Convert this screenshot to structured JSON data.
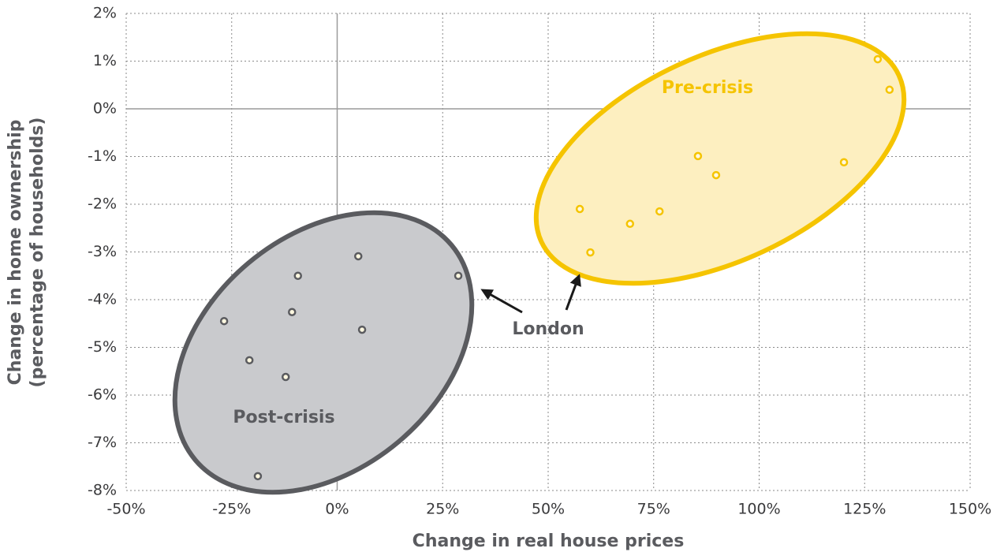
{
  "chart_data": {
    "type": "scatter",
    "xlabel": "Change in real house prices",
    "ylabel": [
      "Change in home ownership",
      "(percentage of households)"
    ],
    "annotations": [
      "London"
    ],
    "xlim": [
      -50,
      150
    ],
    "ylim": [
      -8,
      2
    ],
    "xticks": [
      {
        "value": -50,
        "label": "-50%"
      },
      {
        "value": -25,
        "label": "-25%"
      },
      {
        "value": 0,
        "label": "0%"
      },
      {
        "value": 25,
        "label": "25%"
      },
      {
        "value": 50,
        "label": "50%"
      },
      {
        "value": 75,
        "label": "75%"
      },
      {
        "value": 100,
        "label": "100%"
      },
      {
        "value": 125,
        "label": "125%"
      },
      {
        "value": 150,
        "label": "150%"
      }
    ],
    "yticks": [
      {
        "value": 2,
        "label": "2%"
      },
      {
        "value": 1,
        "label": "1%"
      },
      {
        "value": 0,
        "label": "0%"
      },
      {
        "value": -1,
        "label": "-1%"
      },
      {
        "value": -2,
        "label": "-2%"
      },
      {
        "value": -3,
        "label": "-3%"
      },
      {
        "value": -4,
        "label": "-4%"
      },
      {
        "value": -5,
        "label": "-5%"
      },
      {
        "value": -6,
        "label": "-6%"
      },
      {
        "value": -7,
        "label": "-7%"
      },
      {
        "value": -8,
        "label": "-8%"
      }
    ],
    "grid": true,
    "series": [
      {
        "name": "Pre-crisis",
        "color": "#f5c400",
        "x": [
          128.1,
          130.9,
          85.5,
          89.8,
          120.1,
          57.5,
          76.4,
          69.4,
          60.0
        ],
        "values": [
          1.04,
          0.4,
          -0.99,
          -1.39,
          -1.12,
          -2.1,
          -2.15,
          -2.41,
          -3.01
        ]
      },
      {
        "name": "Post-crisis",
        "color": "#5a5b5f",
        "x": [
          5.0,
          28.7,
          -9.3,
          5.9,
          -10.7,
          -26.8,
          -20.8,
          -12.2,
          -18.8
        ],
        "values": [
          -3.09,
          -3.5,
          -3.5,
          -4.63,
          -4.26,
          -4.45,
          -5.27,
          -5.62,
          -7.7
        ]
      }
    ]
  }
}
